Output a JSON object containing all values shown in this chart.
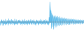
{
  "values": [
    0.3,
    -1.2,
    0.8,
    -0.5,
    1.1,
    -0.3,
    0.6,
    -1.4,
    0.7,
    -0.9,
    1.0,
    -0.6,
    0.5,
    -1.1,
    1.3,
    -0.7,
    0.4,
    -0.8,
    0.9,
    -0.4,
    0.6,
    -1.2,
    1.5,
    -0.6,
    0.8,
    -0.5,
    1.0,
    -0.9,
    0.5,
    -0.7,
    1.2,
    -0.3,
    0.7,
    -1.0,
    0.9,
    -0.5,
    0.4,
    -1.1,
    1.4,
    -0.6,
    0.5,
    -0.8,
    1.1,
    -0.7,
    0.3,
    -1.0,
    0.8,
    -0.4,
    0.9,
    -0.5,
    1.0,
    -0.3,
    0.6,
    -0.9,
    0.7,
    -0.6,
    0.4,
    -1.2,
    1.1,
    -0.5,
    0.8,
    -0.7,
    0.5,
    -1.0,
    1.3,
    -0.4,
    0.6,
    -0.8,
    0.9,
    -0.6,
    0.4,
    -1.1,
    0.7,
    -0.5,
    1.0,
    -0.7,
    0.5,
    -0.9,
    0.8,
    -0.4,
    1.2,
    -0.6,
    0.5,
    -1.0,
    0.9,
    -0.3,
    0.7,
    -0.8,
    1.1,
    -0.5,
    0.6,
    -0.9,
    0.4,
    -1.2,
    0.8,
    -0.6,
    1.0,
    -0.4,
    0.7,
    -0.8,
    0.5,
    -1.1,
    0.9,
    -0.5,
    0.6,
    -0.7,
    1.3,
    -0.4,
    0.8,
    -0.9,
    0.4,
    -0.6,
    1.0,
    -0.8,
    0.7,
    -0.5,
    0.9,
    -1.0,
    0.5,
    -0.7,
    1.2,
    -0.4,
    0.6,
    -0.9,
    0.8,
    -0.6,
    0.4,
    -1.1,
    2.0,
    -0.5,
    8.2,
    5.5,
    3.2,
    4.8,
    -2.5,
    3.6,
    2.2,
    -1.8,
    3.0,
    1.5,
    -2.8,
    2.5,
    1.8,
    -1.4,
    2.8,
    1.2,
    -2.0,
    2.3,
    1.0,
    -1.6,
    2.6,
    1.5,
    -1.2,
    2.0,
    0.9,
    -1.5,
    2.4,
    1.3,
    -1.0,
    1.8,
    0.8,
    -1.4,
    2.1,
    1.1,
    -0.9,
    1.6,
    0.7,
    -1.2,
    1.9,
    1.0,
    -0.8,
    1.5,
    0.6,
    -1.1,
    1.7,
    0.9,
    -0.7,
    1.4,
    0.5,
    -1.0,
    1.6,
    0.8,
    -0.9,
    1.3,
    0.6,
    -0.8,
    1.5,
    0.7,
    -0.6,
    1.2,
    0.5,
    -0.9,
    1.4,
    0.8,
    -0.7,
    1.1,
    0.6,
    -0.8,
    1.3,
    0.7,
    -0.5,
    1.0,
    0.5,
    -0.7,
    1.2,
    0.6,
    -0.6,
    0.9,
    0.4,
    -0.8,
    1.1,
    0.7,
    -0.5,
    0.8,
    0.5,
    -0.7,
    1.0,
    0.6,
    -0.4,
    0.9
  ],
  "line_color": "#5ab8e8",
  "fill_color": "#5ab8e8",
  "background_color": "#ffffff",
  "ylim": [
    -3.5,
    9.0
  ],
  "linewidth": 0.5
}
